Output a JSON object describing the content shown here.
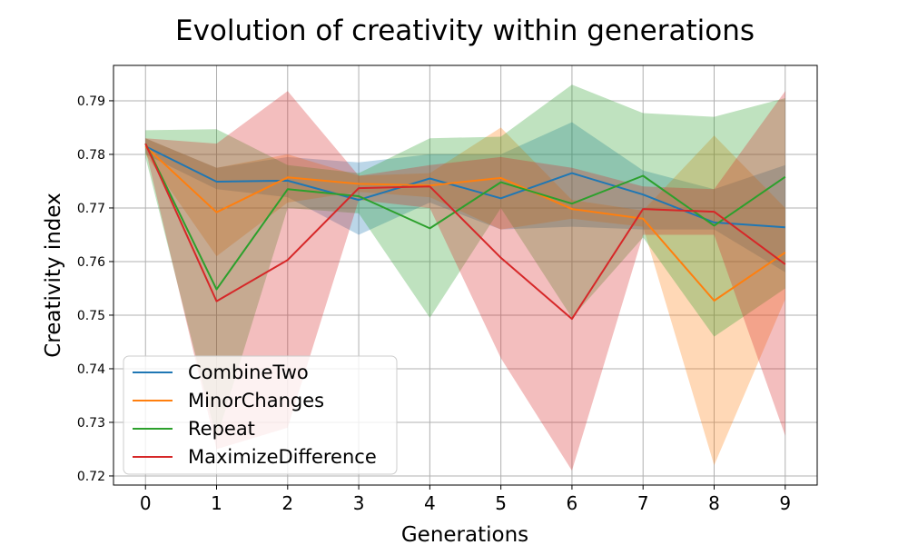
{
  "chart_data": {
    "type": "line",
    "title": "Evolution of creativity within generations",
    "xlabel": "Generations",
    "ylabel": "Creativity index",
    "x": [
      0,
      1,
      2,
      3,
      4,
      5,
      6,
      7,
      8,
      9
    ],
    "xlim": [
      -0.45,
      9.45
    ],
    "ylim": [
      0.7183,
      0.7966
    ],
    "yticks": [
      0.72,
      0.73,
      0.74,
      0.75,
      0.76,
      0.77,
      0.78,
      0.79
    ],
    "ytick_labels": [
      "0.72",
      "0.73",
      "0.74",
      "0.75",
      "0.76",
      "0.77",
      "0.78",
      "0.79"
    ],
    "xtick_labels": [
      "0",
      "1",
      "2",
      "3",
      "4",
      "5",
      "6",
      "7",
      "8",
      "9"
    ],
    "grid": true,
    "legend_position": "lower-left",
    "series": [
      {
        "name": "CombineTwo",
        "color": "#1f77b4",
        "values": [
          0.7815,
          0.7749,
          0.7751,
          0.7715,
          0.7755,
          0.7718,
          0.7765,
          0.7725,
          0.7673,
          0.7664
        ],
        "lower": [
          0.78,
          0.7735,
          0.772,
          0.765,
          0.771,
          0.766,
          0.7665,
          0.766,
          0.766,
          0.758
        ],
        "upper": [
          0.783,
          0.7775,
          0.7795,
          0.7785,
          0.78,
          0.78,
          0.786,
          0.777,
          0.7735,
          0.778
        ]
      },
      {
        "name": "MinorChanges",
        "color": "#ff7f0e",
        "values": [
          0.7815,
          0.7692,
          0.7757,
          0.7745,
          0.7742,
          0.7756,
          0.7698,
          0.768,
          0.7527,
          0.7617
        ],
        "lower": [
          0.78,
          0.761,
          0.771,
          0.773,
          0.772,
          0.766,
          0.768,
          0.7665,
          0.722,
          0.753
        ],
        "upper": [
          0.783,
          0.7775,
          0.78,
          0.776,
          0.7765,
          0.785,
          0.7715,
          0.7695,
          0.7835,
          0.77
        ]
      },
      {
        "name": "Repeat",
        "color": "#2ca02c",
        "values": [
          0.782,
          0.7548,
          0.7735,
          0.7722,
          0.7662,
          0.7748,
          0.7708,
          0.776,
          0.7667,
          0.7758
        ],
        "lower": [
          0.7795,
          0.727,
          0.77,
          0.769,
          0.7495,
          0.77,
          0.7495,
          0.7645,
          0.746,
          0.755
        ],
        "upper": [
          0.7845,
          0.7847,
          0.778,
          0.7765,
          0.783,
          0.7833,
          0.793,
          0.7877,
          0.787,
          0.7905
        ]
      },
      {
        "name": "MaximizeDifference",
        "color": "#d62728",
        "values": [
          0.782,
          0.7526,
          0.7603,
          0.7737,
          0.774,
          0.7607,
          0.7493,
          0.7698,
          0.7693,
          0.7595
        ],
        "lower": [
          0.781,
          0.725,
          0.729,
          0.7715,
          0.77,
          0.742,
          0.721,
          0.765,
          0.765,
          0.7275
        ],
        "upper": [
          0.783,
          0.782,
          0.7918,
          0.776,
          0.778,
          0.7795,
          0.7775,
          0.774,
          0.7735,
          0.7918
        ]
      }
    ]
  }
}
